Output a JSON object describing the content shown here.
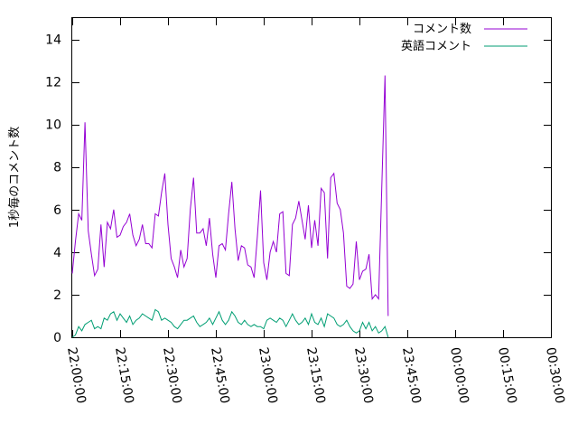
{
  "chart_data": {
    "type": "line",
    "title": "",
    "xlabel": "",
    "ylabel": "1秒毎のコメント数",
    "ylim": [
      0,
      15
    ],
    "yticks": [
      0,
      2,
      4,
      6,
      8,
      10,
      12,
      14
    ],
    "xlim": [
      "22:00:00",
      "00:30:00"
    ],
    "xticks": [
      "22:00:00",
      "22:15:00",
      "22:30:00",
      "22:45:00",
      "23:00:00",
      "23:15:00",
      "23:30:00",
      "23:45:00",
      "00:00:00",
      "00:15:00",
      "00:30:00"
    ],
    "x_start": "22:00:00",
    "x_step_seconds": 60,
    "legend_position": "top-right",
    "grid": false,
    "series": [
      {
        "name": "コメント数",
        "color": "#9400d3",
        "values": [
          3.0,
          4.5,
          5.8,
          5.5,
          10.1,
          5.0,
          3.9,
          2.9,
          3.2,
          5.3,
          3.3,
          5.4,
          5.1,
          6.0,
          4.7,
          4.8,
          5.2,
          5.4,
          5.8,
          4.8,
          4.3,
          4.6,
          5.3,
          4.4,
          4.4,
          4.2,
          5.8,
          5.7,
          6.8,
          7.7,
          5.3,
          3.7,
          3.3,
          2.8,
          4.1,
          3.3,
          3.7,
          6.0,
          7.5,
          4.9,
          4.9,
          5.1,
          4.3,
          5.6,
          3.9,
          2.8,
          4.3,
          4.4,
          4.1,
          5.8,
          7.3,
          5.1,
          3.6,
          4.3,
          4.2,
          3.4,
          3.3,
          2.8,
          4.7,
          6.9,
          3.5,
          2.7,
          4.0,
          4.5,
          4.0,
          5.8,
          5.9,
          3.0,
          2.9,
          5.3,
          5.6,
          6.4,
          5.5,
          4.6,
          6.2,
          4.2,
          5.5,
          4.3,
          7.0,
          6.8,
          3.7,
          7.5,
          7.7,
          6.3,
          6.0,
          4.9,
          2.4,
          2.3,
          2.5,
          4.5,
          2.7,
          3.1,
          3.2,
          3.9,
          1.8,
          2.0,
          1.8,
          7.0,
          12.3,
          1.0
        ]
      },
      {
        "name": "英語コメント",
        "color": "#009e73",
        "values": [
          0.0,
          0.1,
          0.5,
          0.3,
          0.6,
          0.7,
          0.8,
          0.4,
          0.5,
          0.4,
          0.9,
          0.8,
          1.1,
          1.2,
          0.8,
          1.1,
          0.9,
          0.7,
          1.0,
          0.6,
          0.8,
          0.9,
          1.1,
          1.0,
          0.9,
          0.8,
          1.3,
          1.2,
          0.8,
          0.9,
          0.8,
          0.7,
          0.5,
          0.4,
          0.6,
          0.8,
          0.8,
          0.9,
          1.0,
          0.7,
          0.5,
          0.6,
          0.7,
          0.9,
          0.6,
          0.9,
          1.2,
          0.8,
          0.6,
          0.8,
          1.2,
          1.0,
          0.7,
          0.6,
          0.8,
          0.6,
          0.5,
          0.6,
          0.5,
          0.5,
          0.4,
          0.8,
          0.9,
          0.8,
          0.7,
          0.9,
          0.8,
          0.5,
          0.8,
          1.1,
          0.8,
          0.6,
          0.7,
          0.9,
          0.6,
          1.1,
          0.7,
          0.6,
          0.9,
          0.5,
          1.1,
          1.0,
          0.9,
          0.6,
          0.5,
          0.6,
          0.8,
          0.5,
          0.3,
          0.2,
          0.3,
          0.7,
          0.4,
          0.7,
          0.3,
          0.5,
          0.2,
          0.3,
          0.5,
          0.0
        ]
      }
    ]
  }
}
